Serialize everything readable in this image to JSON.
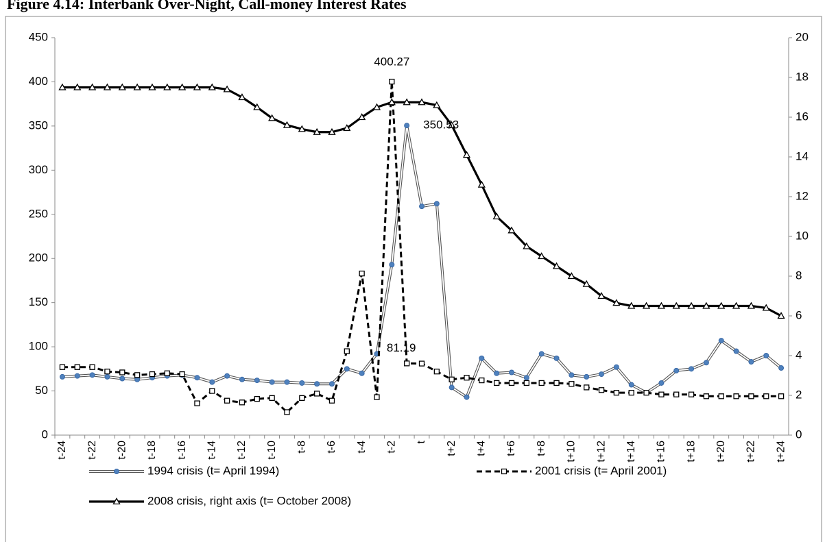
{
  "chart_data": {
    "type": "line",
    "title": "Figure 4.14: Interbank Over-Night, Call-money Interest Rates",
    "categories": [
      "t-24",
      null,
      "t-22",
      null,
      "t-20",
      null,
      "t-18",
      null,
      "t-16",
      null,
      "t-14",
      null,
      "t-12",
      null,
      "t-10",
      null,
      "t-8",
      null,
      "t-6",
      null,
      "t-4",
      null,
      "t-2",
      null,
      "t",
      null,
      "t+2",
      null,
      "t+4",
      null,
      "t+6",
      null,
      "t+8",
      null,
      "t+10",
      null,
      "t+12",
      null,
      "t+14",
      null,
      "t+16",
      null,
      "t+18",
      null,
      "t+20",
      null,
      "t+22",
      null,
      "t+24"
    ],
    "series": [
      {
        "name": "1994 crisis (t= April 1994)",
        "color": "#4f81bd",
        "marker": "circle",
        "style": "double",
        "values": [
          66,
          67,
          68,
          66,
          64,
          63,
          65,
          67,
          68,
          65,
          60,
          67,
          63,
          62,
          60,
          60,
          59,
          58,
          58,
          75,
          70,
          92,
          193,
          350.53,
          259,
          262,
          54,
          43,
          87,
          70,
          71,
          65,
          92,
          87,
          68,
          66,
          69,
          77,
          57,
          48,
          59,
          73,
          75,
          82,
          107,
          95,
          83,
          90,
          76
        ]
      },
      {
        "name": "2001 crisis (t= April 2001)",
        "color": "#000000",
        "marker": "square",
        "style": "dashed",
        "values": [
          77,
          77,
          77,
          72,
          71,
          68,
          69,
          70,
          69,
          36,
          50,
          39,
          37,
          41,
          42,
          26,
          42,
          47,
          39,
          95,
          183,
          43,
          400.27,
          81.19,
          81,
          72,
          63,
          65,
          62,
          59,
          59,
          59,
          59,
          59,
          58,
          54,
          51,
          48,
          48,
          48,
          46,
          46,
          46,
          44,
          44,
          44,
          44,
          44,
          44
        ]
      },
      {
        "name": "2008 crisis, right axis (t= October 2008)",
        "color": "#000000",
        "marker": "triangle",
        "style": "solid",
        "axis": "y2",
        "values": [
          17.5,
          17.5,
          17.5,
          17.5,
          17.5,
          17.5,
          17.5,
          17.5,
          17.5,
          17.5,
          17.5,
          17.4,
          17.0,
          16.5,
          15.95,
          15.6,
          15.4,
          15.25,
          15.25,
          15.45,
          16.0,
          16.5,
          16.75,
          16.75,
          16.75,
          16.6,
          15.6,
          14.1,
          12.6,
          11.0,
          10.3,
          9.5,
          9.0,
          8.5,
          8.0,
          7.6,
          7.0,
          6.65,
          6.5,
          6.5,
          6.5,
          6.5,
          6.5,
          6.5,
          6.5,
          6.5,
          6.5,
          6.4,
          6.0
        ]
      }
    ],
    "ylim": [
      0,
      450
    ],
    "yticks": [
      0,
      50,
      100,
      150,
      200,
      250,
      300,
      350,
      400,
      450
    ],
    "y2lim": [
      0,
      20
    ],
    "y2ticks": [
      0,
      2,
      4,
      6,
      8,
      10,
      12,
      14,
      16,
      18,
      20
    ],
    "grid": false,
    "legend": "bottom"
  }
}
